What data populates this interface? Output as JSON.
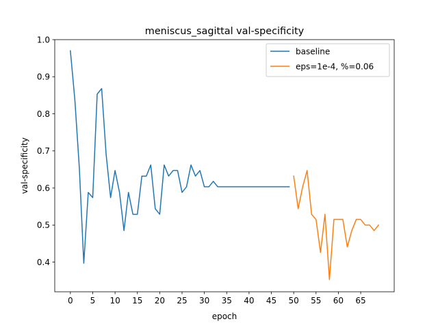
{
  "chart_data": {
    "type": "line",
    "title": "meniscus_sagittal val-specificity",
    "xlabel": "epoch",
    "ylabel": "val-specificity",
    "xlim": [
      -3.5,
      72.5
    ],
    "ylim": [
      0.32,
      1.0
    ],
    "xticks": [
      "0",
      "5",
      "10",
      "15",
      "20",
      "25",
      "30",
      "35",
      "40",
      "45",
      "50",
      "55",
      "60",
      "65"
    ],
    "yticks": [
      "0.4",
      "0.5",
      "0.6",
      "0.7",
      "0.8",
      "0.9",
      "1.0"
    ],
    "grid": false,
    "legend_position": "top-right",
    "series": [
      {
        "name": "baseline",
        "color": "#1f77b4",
        "x": [
          0,
          1,
          2,
          3,
          4,
          5,
          6,
          7,
          8,
          9,
          10,
          11,
          12,
          13,
          14,
          15,
          16,
          17,
          18,
          19,
          20,
          21,
          22,
          23,
          24,
          25,
          26,
          27,
          28,
          29,
          30,
          31,
          32,
          33,
          34,
          35,
          36,
          37,
          38,
          39,
          40,
          41,
          42,
          43,
          44,
          45,
          46,
          47,
          48,
          49
        ],
        "y": [
          0.97,
          0.838,
          0.655,
          0.397,
          0.588,
          0.574,
          0.853,
          0.868,
          0.691,
          0.574,
          0.647,
          0.588,
          0.485,
          0.588,
          0.529,
          0.529,
          0.632,
          0.632,
          0.662,
          0.544,
          0.529,
          0.662,
          0.632,
          0.647,
          0.647,
          0.588,
          0.603,
          0.662,
          0.632,
          0.647,
          0.603,
          0.603,
          0.618,
          0.603,
          0.603,
          0.603,
          0.603,
          0.603,
          0.603,
          0.603,
          0.603,
          0.603,
          0.603,
          0.603,
          0.603,
          0.603,
          0.603,
          0.603,
          0.603,
          0.603
        ]
      },
      {
        "name": "eps=1e-4, %=0.06",
        "color": "#ff7f0e",
        "x": [
          50,
          51,
          52,
          53,
          54,
          55,
          56,
          57,
          58,
          59,
          60,
          61,
          62,
          63,
          64,
          65,
          66,
          67,
          68,
          69
        ],
        "y": [
          0.632,
          0.544,
          0.603,
          0.647,
          0.529,
          0.515,
          0.426,
          0.529,
          0.353,
          0.515,
          0.515,
          0.515,
          0.441,
          0.485,
          0.515,
          0.515,
          0.5,
          0.5,
          0.485,
          0.5
        ]
      }
    ]
  }
}
